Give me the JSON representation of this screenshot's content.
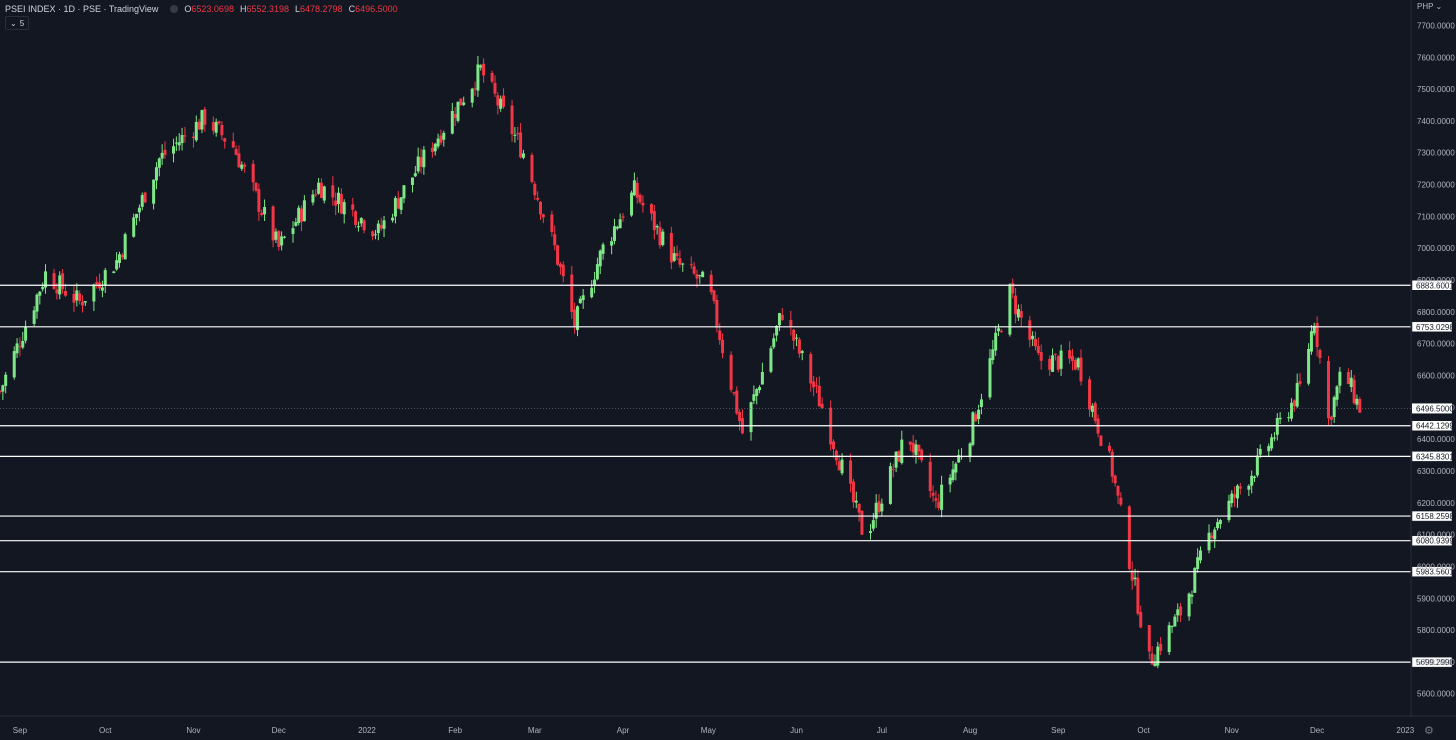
{
  "header": {
    "symbol": "PSEI INDEX · 1D · PSE · TradingView",
    "open_label": "O",
    "open_value": "6523.0698",
    "high_label": "H",
    "high_value": "6552.3198",
    "low_label": "L",
    "low_value": "6478.2798",
    "close_label": "C",
    "close_value": "6496.5000",
    "interval_button": "5",
    "currency": "PHP"
  },
  "colors": {
    "background": "#131722",
    "up": "#7ee787",
    "down": "#f23645",
    "axis_text": "#b2b5be",
    "level_line": "#ffffff"
  },
  "chart_data": {
    "type": "candlestick",
    "x_range": [
      "2021-08-25",
      "2023-01-03"
    ],
    "y_range": [
      5530,
      7780
    ],
    "y_ticks": [
      "5600.0000",
      "5700.0000",
      "5800.0000",
      "5900.0000",
      "6000.0000",
      "6100.0000",
      "6200.0000",
      "6300.0000",
      "6400.0000",
      "6500.0000",
      "6600.0000",
      "6700.0000",
      "6800.0000",
      "6900.0000",
      "7000.0000",
      "7100.0000",
      "7200.0000",
      "7300.0000",
      "7400.0000",
      "7500.0000",
      "7600.0000",
      "7700.0000"
    ],
    "x_ticks": [
      {
        "label": "Sep",
        "date": "2021-09-01"
      },
      {
        "label": "Oct",
        "date": "2021-10-01"
      },
      {
        "label": "Nov",
        "date": "2021-11-01"
      },
      {
        "label": "Dec",
        "date": "2021-12-01"
      },
      {
        "label": "2022",
        "date": "2022-01-01"
      },
      {
        "label": "Feb",
        "date": "2022-02-01"
      },
      {
        "label": "Mar",
        "date": "2022-03-01"
      },
      {
        "label": "Apr",
        "date": "2022-04-01"
      },
      {
        "label": "May",
        "date": "2022-05-01"
      },
      {
        "label": "Jun",
        "date": "2022-06-01"
      },
      {
        "label": "Jul",
        "date": "2022-07-01"
      },
      {
        "label": "Aug",
        "date": "2022-08-01"
      },
      {
        "label": "Sep",
        "date": "2022-09-01"
      },
      {
        "label": "Oct",
        "date": "2022-10-01"
      },
      {
        "label": "Nov",
        "date": "2022-11-01"
      },
      {
        "label": "Dec",
        "date": "2022-12-01"
      },
      {
        "label": "2023",
        "date": "2023-01-01"
      }
    ],
    "current_price": "6496.5000",
    "levels": [
      "6883.6001",
      "6753.0298",
      "6442.1299",
      "6345.8301",
      "6158.2598",
      "6080.9399",
      "5983.5601",
      "5699.2998"
    ],
    "date_range": [
      "2021-08-25",
      "2022-12-16"
    ],
    "anchors": [
      {
        "date": "2021-08-25",
        "close": 6550
      },
      {
        "date": "2021-09-10",
        "close": 6920
      },
      {
        "date": "2021-09-22",
        "close": 6830
      },
      {
        "date": "2021-10-05",
        "close": 6960
      },
      {
        "date": "2021-10-20",
        "close": 7280
      },
      {
        "date": "2021-11-05",
        "close": 7410
      },
      {
        "date": "2021-11-15",
        "close": 7320
      },
      {
        "date": "2021-12-01",
        "close": 7000
      },
      {
        "date": "2021-12-15",
        "close": 7200
      },
      {
        "date": "2022-01-05",
        "close": 7050
      },
      {
        "date": "2022-01-20",
        "close": 7270
      },
      {
        "date": "2022-02-10",
        "close": 7560
      },
      {
        "date": "2022-02-25",
        "close": 7300
      },
      {
        "date": "2022-03-08",
        "close": 7000
      },
      {
        "date": "2022-03-15",
        "close": 6760
      },
      {
        "date": "2022-03-25",
        "close": 7000
      },
      {
        "date": "2022-04-05",
        "close": 7180
      },
      {
        "date": "2022-04-20",
        "close": 6950
      },
      {
        "date": "2022-05-01",
        "close": 6880
      },
      {
        "date": "2022-05-13",
        "close": 6420
      },
      {
        "date": "2022-05-27",
        "close": 6800
      },
      {
        "date": "2022-06-10",
        "close": 6500
      },
      {
        "date": "2022-06-25",
        "close": 6090
      },
      {
        "date": "2022-07-10",
        "close": 6420
      },
      {
        "date": "2022-07-20",
        "close": 6190
      },
      {
        "date": "2022-08-01",
        "close": 6420
      },
      {
        "date": "2022-08-15",
        "close": 6860
      },
      {
        "date": "2022-08-25",
        "close": 6650
      },
      {
        "date": "2022-09-08",
        "close": 6640
      },
      {
        "date": "2022-09-20",
        "close": 6300
      },
      {
        "date": "2022-10-03",
        "close": 5700
      },
      {
        "date": "2022-10-15",
        "close": 5870
      },
      {
        "date": "2022-10-25",
        "close": 6120
      },
      {
        "date": "2022-11-10",
        "close": 6320
      },
      {
        "date": "2022-11-25",
        "close": 6560
      },
      {
        "date": "2022-11-30",
        "close": 6780
      },
      {
        "date": "2022-12-05",
        "close": 6460
      },
      {
        "date": "2022-12-10",
        "close": 6620
      },
      {
        "date": "2022-12-16",
        "close": 6496.5
      }
    ]
  }
}
